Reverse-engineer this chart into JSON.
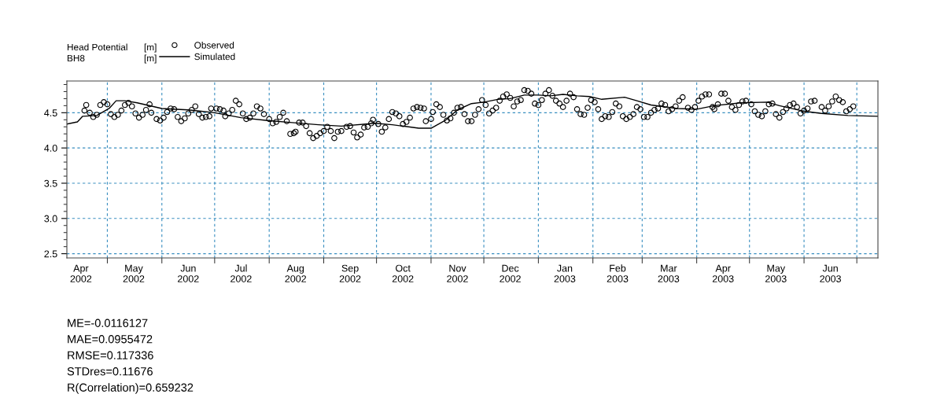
{
  "chart_data": {
    "type": "line",
    "title": "Head Potential",
    "subtitle": "BH8",
    "legend": "top left",
    "grid": true,
    "xlim": [
      "2002-04-08",
      "2003-07-13"
    ],
    "xticks": [
      {
        "value": "2002-04-16",
        "label": "Apr\n2002"
      },
      {
        "value": "2002-05-01",
        "label": null
      },
      {
        "value": "2002-05-16",
        "label": "May\n2002"
      },
      {
        "value": "2002-06-01",
        "label": null
      },
      {
        "value": "2002-06-16",
        "label": "Jun\n2002"
      },
      {
        "value": "2002-07-01",
        "label": null
      },
      {
        "value": "2002-07-16",
        "label": "Jul\n2002"
      },
      {
        "value": "2002-08-01",
        "label": null
      },
      {
        "value": "2002-08-16",
        "label": "Aug\n2002"
      },
      {
        "value": "2002-09-01",
        "label": null
      },
      {
        "value": "2002-09-16",
        "label": "Sep\n2002"
      },
      {
        "value": "2002-10-01",
        "label": null
      },
      {
        "value": "2002-10-16",
        "label": "Oct\n2002"
      },
      {
        "value": "2002-11-01",
        "label": null
      },
      {
        "value": "2002-11-16",
        "label": "Nov\n2002"
      },
      {
        "value": "2002-12-01",
        "label": null
      },
      {
        "value": "2002-12-16",
        "label": "Dec\n2002"
      },
      {
        "value": "2003-01-01",
        "label": null
      },
      {
        "value": "2003-01-16",
        "label": "Jan\n2003"
      },
      {
        "value": "2003-02-01",
        "label": null
      },
      {
        "value": "2003-02-15",
        "label": "Feb\n2003"
      },
      {
        "value": "2003-03-01",
        "label": null
      },
      {
        "value": "2003-03-16",
        "label": "Mar\n2003"
      },
      {
        "value": "2003-04-01",
        "label": null
      },
      {
        "value": "2003-04-16",
        "label": "Apr\n2003"
      },
      {
        "value": "2003-05-01",
        "label": null
      },
      {
        "value": "2003-05-16",
        "label": "May\n2003"
      },
      {
        "value": "2003-06-01",
        "label": null
      },
      {
        "value": "2003-06-16",
        "label": "Jun\n2003"
      },
      {
        "value": "2003-07-01",
        "label": null
      }
    ],
    "ylim": [
      2.44,
      4.95
    ],
    "yticks": [
      {
        "value": 2.5,
        "label": "2.5"
      },
      {
        "value": 2.6,
        "label": null
      },
      {
        "value": 2.7,
        "label": null
      },
      {
        "value": 2.8,
        "label": null
      },
      {
        "value": 2.9,
        "label": null
      },
      {
        "value": 3.0,
        "label": "3.0"
      },
      {
        "value": 3.1,
        "label": null
      },
      {
        "value": 3.2,
        "label": null
      },
      {
        "value": 3.3,
        "label": null
      },
      {
        "value": 3.4,
        "label": null
      },
      {
        "value": 3.5,
        "label": "3.5"
      },
      {
        "value": 3.6,
        "label": null
      },
      {
        "value": 3.7,
        "label": null
      },
      {
        "value": 3.8,
        "label": null
      },
      {
        "value": 3.9,
        "label": null
      },
      {
        "value": 4.0,
        "label": "4.0"
      },
      {
        "value": 4.1,
        "label": null
      },
      {
        "value": 4.2,
        "label": null
      },
      {
        "value": 4.3,
        "label": null
      },
      {
        "value": 4.4,
        "label": null
      },
      {
        "value": 4.5,
        "label": "4.5"
      },
      {
        "value": 4.6,
        "label": null
      },
      {
        "value": 4.7,
        "label": null
      },
      {
        "value": 4.8,
        "label": null
      },
      {
        "value": 4.9,
        "label": null
      }
    ],
    "annotations": [
      "[m]",
      "[m]",
      "ME=-0.0116127",
      "MAE=0.0955472",
      "RMSE=0.117336",
      "STDres=0.11676",
      "R(Correlation)=0.659232"
    ],
    "series": [
      {
        "name": "Observed",
        "type": "scatter",
        "marker": "circle",
        "color": "#000000",
        "x": [
          "2002-04-18",
          "2002-04-19",
          "2002-04-21",
          "2002-04-23",
          "2002-04-25",
          "2002-04-27",
          "2002-04-29",
          "2002-05-01",
          "2002-05-03",
          "2002-05-05",
          "2002-05-07",
          "2002-05-09",
          "2002-05-11",
          "2002-05-13",
          "2002-05-15",
          "2002-05-17",
          "2002-05-19",
          "2002-05-21",
          "2002-05-23",
          "2002-05-25",
          "2002-05-26",
          "2002-05-29",
          "2002-05-31",
          "2002-06-02",
          "2002-06-04",
          "2002-06-06",
          "2002-06-08",
          "2002-06-10",
          "2002-06-12",
          "2002-06-14",
          "2002-06-16",
          "2002-06-18",
          "2002-06-20",
          "2002-06-22",
          "2002-06-24",
          "2002-06-26",
          "2002-06-28",
          "2002-06-29",
          "2002-07-02",
          "2002-07-04",
          "2002-07-06",
          "2002-07-07",
          "2002-07-09",
          "2002-07-11",
          "2002-07-13",
          "2002-07-15",
          "2002-07-17",
          "2002-07-19",
          "2002-07-21",
          "2002-07-23",
          "2002-07-25",
          "2002-07-27",
          "2002-07-29",
          "2002-08-01",
          "2002-08-03",
          "2002-08-05",
          "2002-08-07",
          "2002-08-09",
          "2002-08-11",
          "2002-08-13",
          "2002-08-15",
          "2002-08-16",
          "2002-08-18",
          "2002-08-20",
          "2002-08-22",
          "2002-08-24",
          "2002-08-26",
          "2002-08-28",
          "2002-08-30",
          "2002-09-01",
          "2002-09-03",
          "2002-09-05",
          "2002-09-07",
          "2002-09-09",
          "2002-09-11",
          "2002-09-14",
          "2002-09-16",
          "2002-09-18",
          "2002-09-20",
          "2002-09-22",
          "2002-09-24",
          "2002-09-26",
          "2002-09-28",
          "2002-09-29",
          "2002-10-02",
          "2002-10-04",
          "2002-10-06",
          "2002-10-08",
          "2002-10-10",
          "2002-10-12",
          "2002-10-14",
          "2002-10-16",
          "2002-10-18",
          "2002-10-20",
          "2002-10-22",
          "2002-10-24",
          "2002-10-26",
          "2002-10-28",
          "2002-10-29",
          "2002-11-01",
          "2002-11-02",
          "2002-11-04",
          "2002-11-06",
          "2002-11-08",
          "2002-11-10",
          "2002-11-12",
          "2002-11-14",
          "2002-11-16",
          "2002-11-18",
          "2002-11-20",
          "2002-11-22",
          "2002-11-24",
          "2002-11-26",
          "2002-11-28",
          "2002-11-30",
          "2002-12-02",
          "2002-12-04",
          "2002-12-06",
          "2002-12-08",
          "2002-12-10",
          "2002-12-12",
          "2002-12-14",
          "2002-12-16",
          "2002-12-18",
          "2002-12-20",
          "2002-12-22",
          "2002-12-24",
          "2002-12-26",
          "2002-12-28",
          "2002-12-30",
          "2003-01-01",
          "2003-01-03",
          "2003-01-05",
          "2003-01-07",
          "2003-01-09",
          "2003-01-11",
          "2003-01-13",
          "2003-01-15",
          "2003-01-17",
          "2003-01-19",
          "2003-01-21",
          "2003-01-23",
          "2003-01-25",
          "2003-01-27",
          "2003-01-29",
          "2003-01-31",
          "2003-02-02",
          "2003-02-04",
          "2003-02-06",
          "2003-02-08",
          "2003-02-10",
          "2003-02-12",
          "2003-02-14",
          "2003-02-16",
          "2003-02-18",
          "2003-02-20",
          "2003-02-22",
          "2003-02-24",
          "2003-02-26",
          "2003-02-28",
          "2003-03-02",
          "2003-03-04",
          "2003-03-06",
          "2003-03-08",
          "2003-03-10",
          "2003-03-12",
          "2003-03-14",
          "2003-03-16",
          "2003-03-18",
          "2003-03-20",
          "2003-03-22",
          "2003-03-24",
          "2003-03-27",
          "2003-03-29",
          "2003-03-31",
          "2003-04-02",
          "2003-04-04",
          "2003-04-06",
          "2003-04-08",
          "2003-04-10",
          "2003-04-11",
          "2003-04-13",
          "2003-04-15",
          "2003-04-17",
          "2003-04-19",
          "2003-04-21",
          "2003-04-23",
          "2003-04-25",
          "2003-04-27",
          "2003-04-29",
          "2003-05-02",
          "2003-05-04",
          "2003-05-06",
          "2003-05-08",
          "2003-05-10",
          "2003-05-12",
          "2003-05-14",
          "2003-05-16",
          "2003-05-18",
          "2003-05-20",
          "2003-05-22",
          "2003-05-24",
          "2003-05-26",
          "2003-05-28",
          "2003-05-30",
          "2003-06-01",
          "2003-06-03",
          "2003-06-05",
          "2003-06-07",
          "2003-06-11",
          "2003-06-13",
          "2003-06-15",
          "2003-06-17",
          "2003-06-19",
          "2003-06-21",
          "2003-06-23",
          "2003-06-25",
          "2003-06-27",
          "2003-06-29"
        ],
        "values": [
          4.53,
          4.61,
          4.5,
          4.44,
          4.47,
          4.61,
          4.65,
          4.62,
          4.48,
          4.44,
          4.47,
          4.53,
          4.61,
          4.64,
          4.59,
          4.49,
          4.43,
          4.47,
          4.54,
          4.62,
          4.5,
          4.41,
          4.39,
          4.43,
          4.51,
          4.56,
          4.55,
          4.44,
          4.38,
          4.42,
          4.49,
          4.54,
          4.59,
          4.48,
          4.43,
          4.44,
          4.45,
          4.56,
          4.56,
          4.55,
          4.53,
          4.45,
          4.49,
          4.54,
          4.67,
          4.62,
          4.49,
          4.41,
          4.43,
          4.49,
          4.59,
          4.56,
          4.48,
          4.41,
          4.35,
          4.37,
          4.44,
          4.5,
          4.38,
          4.2,
          4.21,
          4.23,
          4.36,
          4.36,
          4.31,
          4.21,
          4.14,
          4.17,
          4.21,
          4.24,
          4.3,
          4.24,
          4.14,
          4.23,
          4.24,
          4.3,
          4.31,
          4.22,
          4.15,
          4.19,
          4.29,
          4.3,
          4.35,
          4.4,
          4.34,
          4.23,
          4.29,
          4.41,
          4.51,
          4.49,
          4.45,
          4.34,
          4.37,
          4.43,
          4.56,
          4.58,
          4.57,
          4.56,
          4.38,
          4.41,
          4.51,
          4.62,
          4.58,
          4.47,
          4.39,
          4.42,
          4.5,
          4.57,
          4.58,
          4.48,
          4.38,
          4.38,
          4.47,
          4.55,
          4.68,
          4.61,
          4.49,
          4.53,
          4.57,
          4.67,
          4.73,
          4.76,
          4.71,
          4.59,
          4.66,
          4.68,
          4.82,
          4.81,
          4.77,
          4.63,
          4.61,
          4.68,
          4.77,
          4.82,
          4.74,
          4.67,
          4.63,
          4.58,
          4.67,
          4.77,
          4.72,
          4.55,
          4.48,
          4.47,
          4.57,
          4.68,
          4.65,
          4.55,
          4.41,
          4.45,
          4.44,
          4.51,
          4.63,
          4.59,
          4.45,
          4.41,
          4.44,
          4.48,
          4.58,
          4.55,
          4.44,
          4.44,
          4.5,
          4.54,
          4.56,
          4.63,
          4.61,
          4.52,
          4.55,
          4.59,
          4.67,
          4.72,
          4.57,
          4.54,
          4.58,
          4.67,
          4.73,
          4.76,
          4.76,
          4.58,
          4.55,
          4.62,
          4.77,
          4.77,
          4.67,
          4.58,
          4.54,
          4.61,
          4.66,
          4.67,
          4.62,
          4.52,
          4.47,
          4.45,
          4.52,
          4.62,
          4.63,
          4.48,
          4.43,
          4.51,
          4.56,
          4.61,
          4.63,
          4.58,
          4.49,
          4.53,
          4.56,
          4.66,
          4.67,
          4.58,
          4.53,
          4.59,
          4.66,
          4.73,
          4.68,
          4.65,
          4.52,
          4.55,
          4.59
        ]
      },
      {
        "name": "Simulated",
        "line_style": "solid",
        "color": "#000000",
        "x": [
          "2002-04-08",
          "2002-04-14",
          "2002-04-17",
          "2002-04-25",
          "2002-05-02",
          "2002-05-06",
          "2002-05-11",
          "2002-05-18",
          "2002-06-01",
          "2002-06-16",
          "2002-07-01",
          "2002-07-16",
          "2002-07-31",
          "2002-08-14",
          "2002-08-29",
          "2002-09-11",
          "2002-09-30",
          "2002-10-10",
          "2002-10-25",
          "2002-11-01",
          "2002-11-09",
          "2002-11-16",
          "2002-11-24",
          "2002-12-01",
          "2002-12-09",
          "2002-12-16",
          "2002-12-24",
          "2003-01-01",
          "2003-01-08",
          "2003-01-15",
          "2003-01-23",
          "2003-01-30",
          "2003-02-06",
          "2003-02-19",
          "2003-02-26",
          "2003-03-06",
          "2003-03-21",
          "2003-04-01",
          "2003-04-11",
          "2003-04-26",
          "2003-05-11",
          "2003-05-18",
          "2003-06-01",
          "2003-06-11",
          "2003-06-26",
          "2003-07-13"
        ],
        "values": [
          4.34,
          4.37,
          4.45,
          4.46,
          4.56,
          4.67,
          4.67,
          4.64,
          4.56,
          4.54,
          4.5,
          4.43,
          4.39,
          4.36,
          4.33,
          4.31,
          4.35,
          4.33,
          4.28,
          4.28,
          4.39,
          4.54,
          4.63,
          4.65,
          4.69,
          4.7,
          4.75,
          4.75,
          4.74,
          4.76,
          4.74,
          4.73,
          4.69,
          4.72,
          4.67,
          4.61,
          4.56,
          4.55,
          4.6,
          4.64,
          4.65,
          4.6,
          4.52,
          4.49,
          4.46,
          4.45
        ]
      }
    ]
  }
}
